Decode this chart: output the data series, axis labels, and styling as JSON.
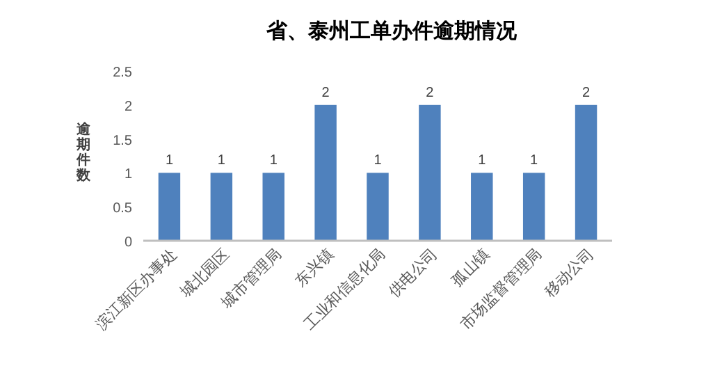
{
  "chart_data": {
    "type": "bar",
    "title": "省、泰州工单办件逾期情况",
    "ylabel": "逾期件数",
    "categories": [
      "滨江新区办事处",
      "城北园区",
      "城市管理局",
      "东兴镇",
      "工业和信息化局",
      "供电公司",
      "孤山镇",
      "市场监督管理局",
      "移动公司"
    ],
    "values": [
      1,
      1,
      1,
      2,
      1,
      2,
      1,
      1,
      2
    ],
    "color": "#4f81bd",
    "ylim": [
      0,
      2.5
    ],
    "yticks": [
      0,
      0.5,
      1,
      1.5,
      2,
      2.5
    ],
    "data_labels": true
  }
}
